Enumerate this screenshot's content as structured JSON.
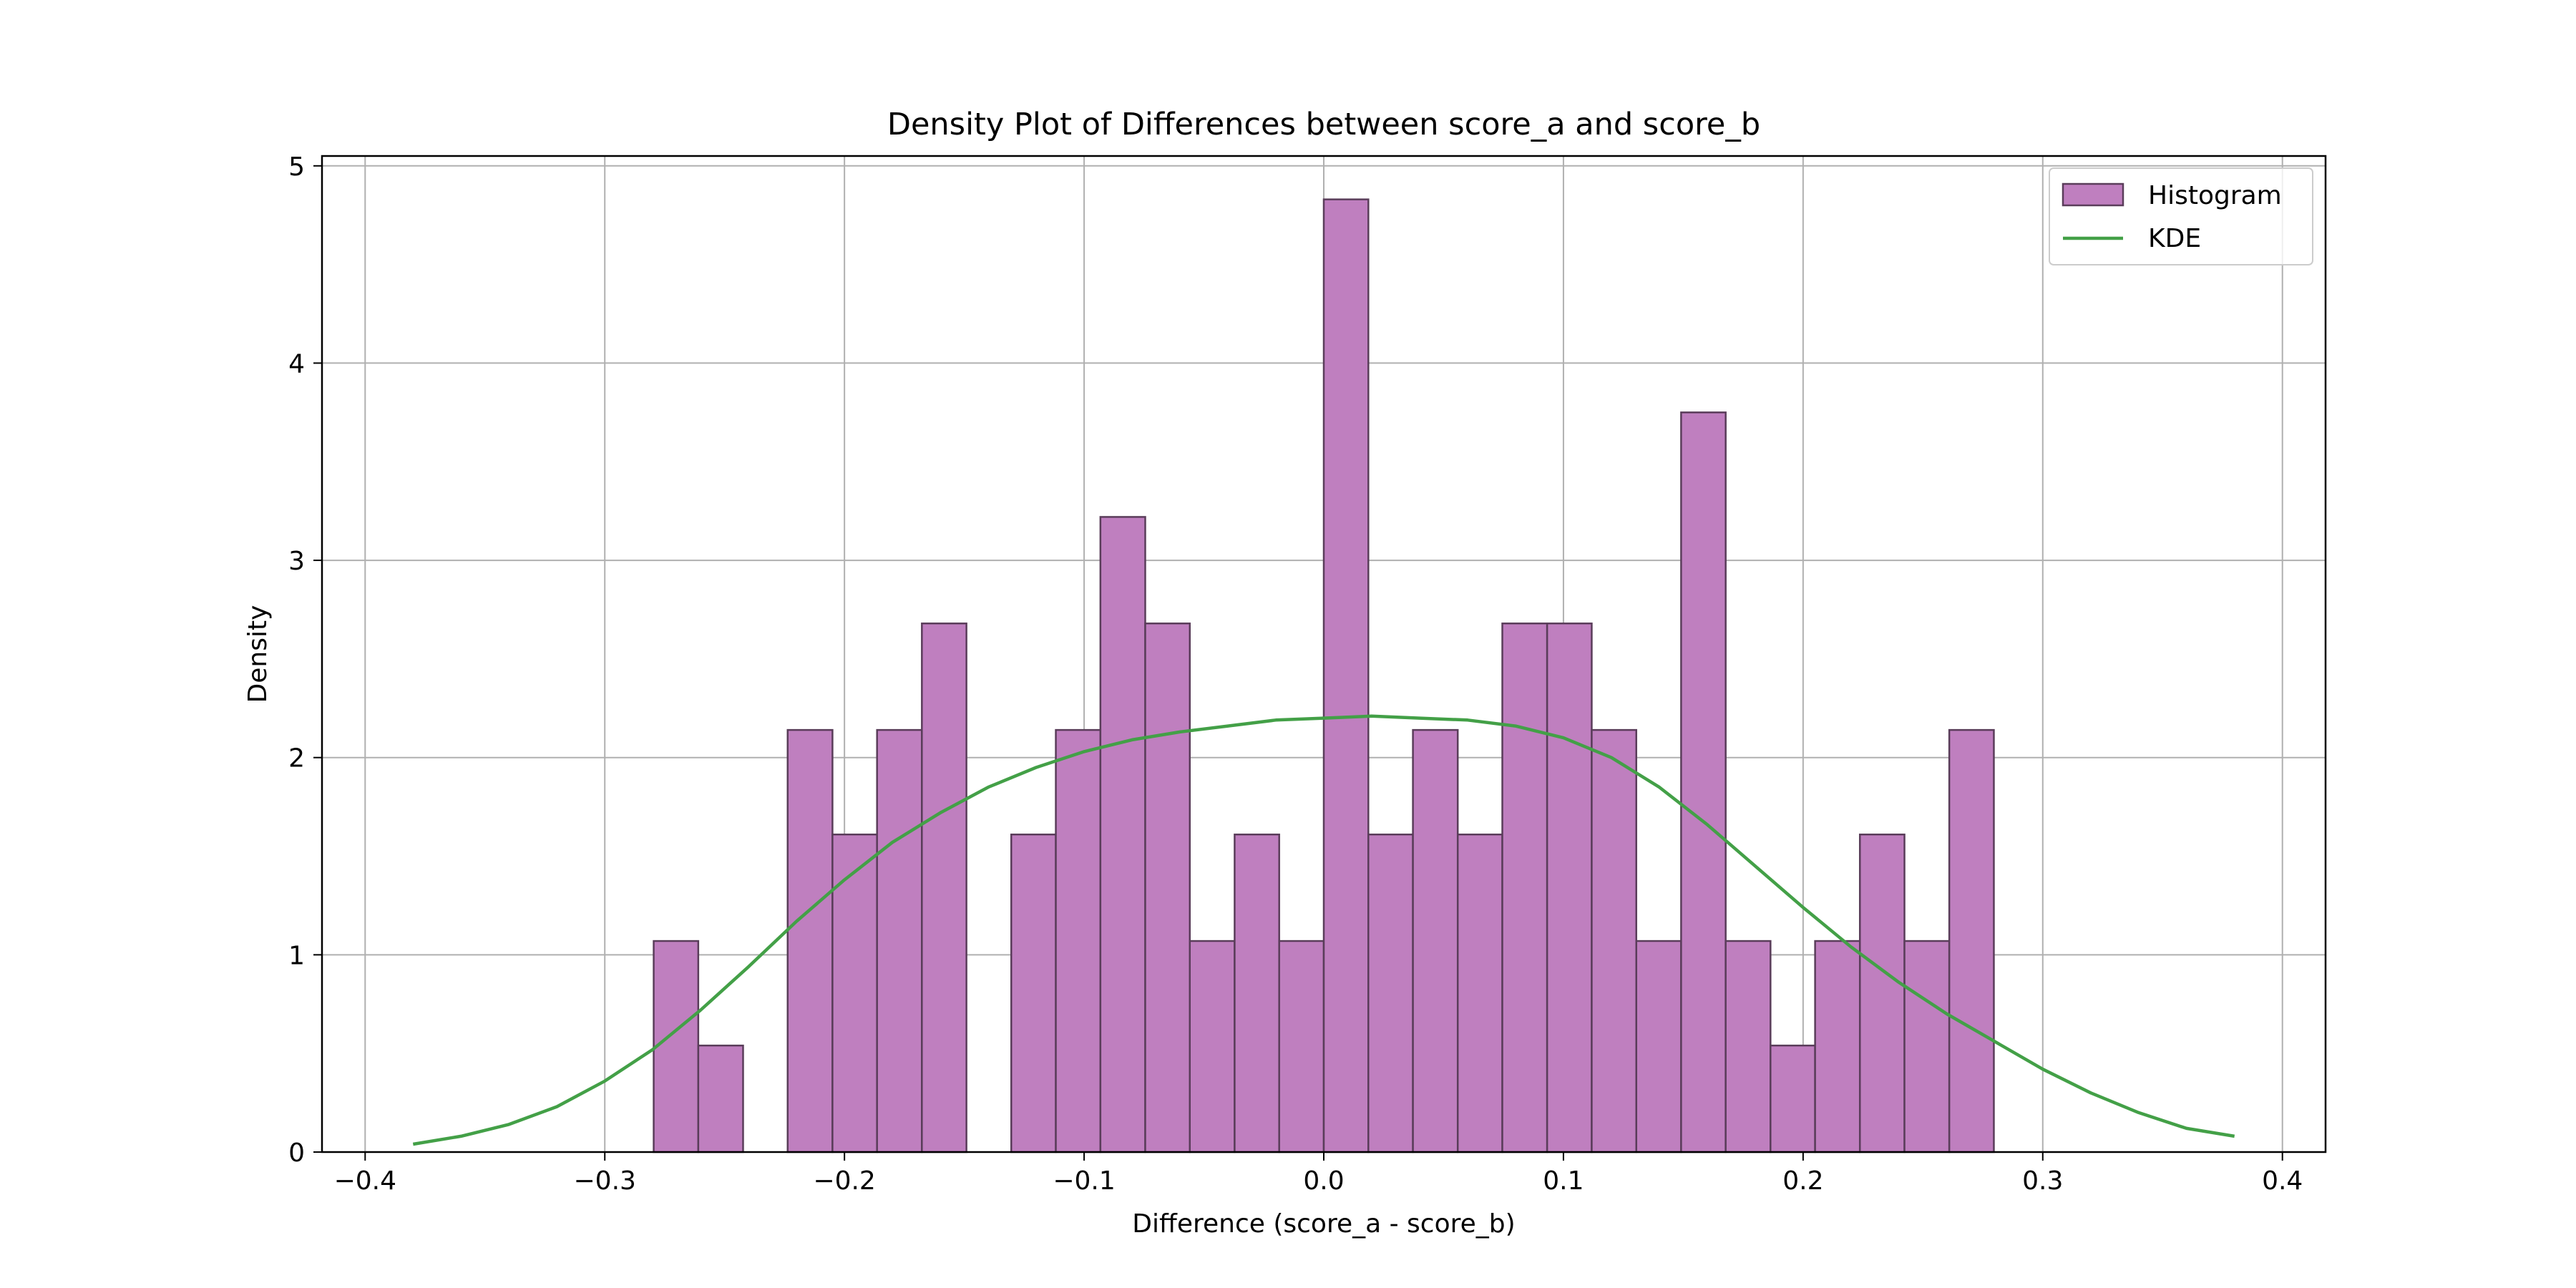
{
  "chart_data": {
    "type": "bar",
    "title": "Density Plot of Differences between score_a and score_b",
    "xlabel": "Difference (score_a - score_b)",
    "ylabel": "Density",
    "xlim": [
      -0.418,
      0.418
    ],
    "ylim": [
      0,
      5.05
    ],
    "xticks": [
      -0.4,
      -0.3,
      -0.2,
      -0.1,
      0.0,
      0.1,
      0.2,
      0.3,
      0.4
    ],
    "xtick_labels": [
      "−0.4",
      "−0.3",
      "−0.2",
      "−0.1",
      "0.0",
      "0.1",
      "0.2",
      "0.3",
      "0.4"
    ],
    "yticks": [
      0,
      1,
      2,
      3,
      4,
      5
    ],
    "ytick_labels": [
      "0",
      "1",
      "2",
      "3",
      "4",
      "5"
    ],
    "grid": true,
    "legend_position": "top-right",
    "colors": {
      "histogram_fill": "#bf7fbf",
      "histogram_edge": "#5a3d5a",
      "kde_line": "#43a047",
      "grid": "#b0b0b0"
    },
    "series": [
      {
        "name": "Histogram",
        "kind": "histogram",
        "bins": [
          {
            "x0": -0.2796,
            "x1": -0.261,
            "density": 1.07
          },
          {
            "x0": -0.261,
            "x1": -0.2423,
            "density": 0.54
          },
          {
            "x0": -0.2423,
            "x1": -0.2237,
            "density": 0
          },
          {
            "x0": -0.2237,
            "x1": -0.205,
            "density": 2.14
          },
          {
            "x0": -0.205,
            "x1": -0.1864,
            "density": 1.61
          },
          {
            "x0": -0.1864,
            "x1": -0.1677,
            "density": 2.14
          },
          {
            "x0": -0.1677,
            "x1": -0.1491,
            "density": 2.68
          },
          {
            "x0": -0.1491,
            "x1": -0.1304,
            "density": 0
          },
          {
            "x0": -0.1304,
            "x1": -0.1118,
            "density": 1.61
          },
          {
            "x0": -0.1118,
            "x1": -0.0932,
            "density": 2.14
          },
          {
            "x0": -0.0932,
            "x1": -0.0745,
            "density": 3.22
          },
          {
            "x0": -0.0745,
            "x1": -0.0559,
            "density": 2.68
          },
          {
            "x0": -0.0559,
            "x1": -0.0372,
            "density": 1.07
          },
          {
            "x0": -0.0372,
            "x1": -0.0186,
            "density": 1.61
          },
          {
            "x0": -0.0186,
            "x1": 0.0,
            "density": 1.07
          },
          {
            "x0": 0.0,
            "x1": 0.0186,
            "density": 4.83
          },
          {
            "x0": 0.0186,
            "x1": 0.0372,
            "density": 1.61
          },
          {
            "x0": 0.0372,
            "x1": 0.0559,
            "density": 2.14
          },
          {
            "x0": 0.0559,
            "x1": 0.0745,
            "density": 1.61
          },
          {
            "x0": 0.0745,
            "x1": 0.0932,
            "density": 2.68
          },
          {
            "x0": 0.0932,
            "x1": 0.1118,
            "density": 2.68
          },
          {
            "x0": 0.1118,
            "x1": 0.1304,
            "density": 2.14
          },
          {
            "x0": 0.1304,
            "x1": 0.1491,
            "density": 1.07
          },
          {
            "x0": 0.1491,
            "x1": 0.1677,
            "density": 3.75
          },
          {
            "x0": 0.1677,
            "x1": 0.1864,
            "density": 1.07
          },
          {
            "x0": 0.1864,
            "x1": 0.205,
            "density": 0.54
          },
          {
            "x0": 0.205,
            "x1": 0.2237,
            "density": 1.07
          },
          {
            "x0": 0.2237,
            "x1": 0.2423,
            "density": 1.61
          },
          {
            "x0": 0.2423,
            "x1": 0.261,
            "density": 1.07
          },
          {
            "x0": 0.261,
            "x1": 0.2796,
            "density": 2.14
          }
        ]
      },
      {
        "name": "KDE",
        "kind": "line",
        "x": [
          -0.38,
          -0.36,
          -0.34,
          -0.32,
          -0.3,
          -0.28,
          -0.26,
          -0.24,
          -0.22,
          -0.2,
          -0.18,
          -0.16,
          -0.14,
          -0.12,
          -0.1,
          -0.08,
          -0.06,
          -0.04,
          -0.02,
          0.0,
          0.02,
          0.04,
          0.06,
          0.08,
          0.1,
          0.12,
          0.14,
          0.16,
          0.18,
          0.2,
          0.22,
          0.24,
          0.26,
          0.28,
          0.3,
          0.32,
          0.34,
          0.36,
          0.38
        ],
        "y": [
          0.04,
          0.08,
          0.14,
          0.23,
          0.36,
          0.52,
          0.72,
          0.94,
          1.17,
          1.38,
          1.57,
          1.72,
          1.85,
          1.95,
          2.03,
          2.09,
          2.13,
          2.16,
          2.19,
          2.2,
          2.21,
          2.2,
          2.19,
          2.16,
          2.1,
          2.0,
          1.85,
          1.66,
          1.45,
          1.24,
          1.04,
          0.86,
          0.7,
          0.56,
          0.42,
          0.3,
          0.2,
          0.12,
          0.08
        ]
      }
    ]
  }
}
